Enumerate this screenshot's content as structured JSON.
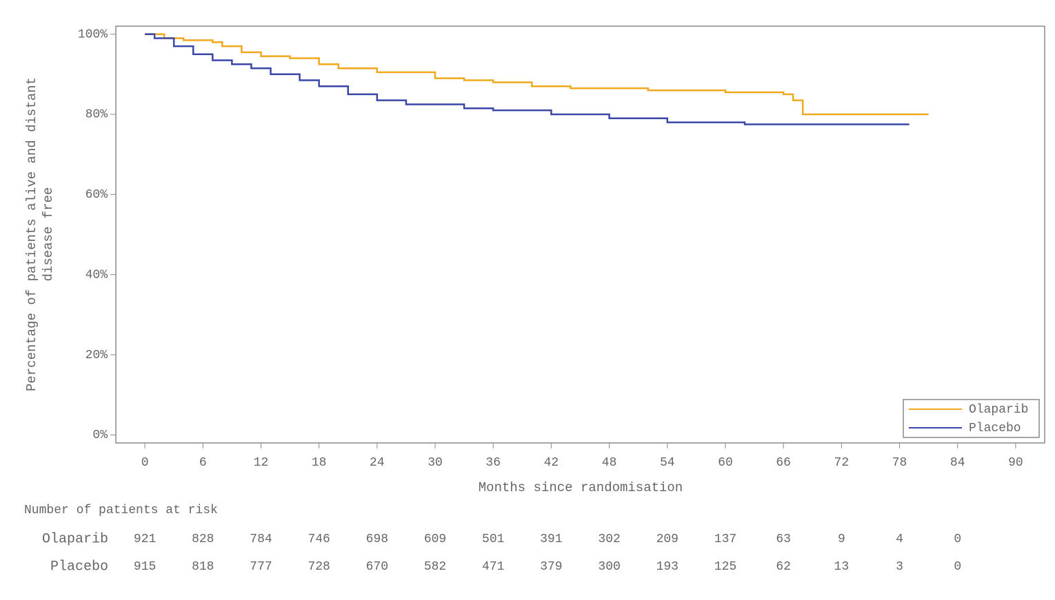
{
  "chart_data": {
    "type": "line",
    "step": "post",
    "ylabel": [
      "Percentage of patients alive and distant",
      "disease free"
    ],
    "xlabel": "Months since randomisation",
    "xlim": [
      -3,
      93
    ],
    "xticks": [
      0,
      6,
      12,
      18,
      24,
      30,
      36,
      42,
      48,
      54,
      60,
      66,
      72,
      78,
      84,
      90
    ],
    "ylim": [
      -2,
      102
    ],
    "yticks": [
      {
        "value": 0,
        "label": "0%"
      },
      {
        "value": 20,
        "label": "20%"
      },
      {
        "value": 40,
        "label": "40%"
      },
      {
        "value": 60,
        "label": "60%"
      },
      {
        "value": 80,
        "label": "80%"
      },
      {
        "value": 100,
        "label": "100%"
      }
    ],
    "legend": "lower right",
    "series": [
      {
        "name": "Olaparib",
        "color": "#f0a81c",
        "x": [
          0,
          2,
          4,
          7,
          8,
          10,
          12,
          15,
          18,
          20,
          24,
          30,
          33,
          36,
          40,
          44,
          52,
          60,
          66,
          67,
          68,
          81
        ],
        "values": [
          100,
          99,
          98.5,
          98,
          97,
          95.5,
          94.5,
          94,
          92.5,
          91.5,
          90.5,
          89,
          88.5,
          88,
          87,
          86.5,
          86,
          85.5,
          85,
          83.5,
          80,
          80
        ]
      },
      {
        "name": "Placebo",
        "color": "#3a46a8",
        "x": [
          0,
          1,
          3,
          5,
          7,
          9,
          11,
          13,
          16,
          18,
          21,
          24,
          27,
          33,
          36,
          42,
          48,
          54,
          62,
          79
        ],
        "values": [
          100,
          99,
          97,
          95,
          93.5,
          92.5,
          91.5,
          90,
          88.5,
          87,
          85,
          83.5,
          82.5,
          81.5,
          81,
          80,
          79,
          78,
          77.5,
          77.5
        ]
      }
    ],
    "risk_table": {
      "title": "Number of patients at risk",
      "rows": [
        {
          "name": "Olaparib",
          "values": [
            921,
            828,
            784,
            746,
            698,
            609,
            501,
            391,
            302,
            209,
            137,
            63,
            9,
            4,
            0
          ]
        },
        {
          "name": "Placebo",
          "values": [
            915,
            818,
            777,
            728,
            670,
            582,
            471,
            379,
            300,
            193,
            125,
            62,
            13,
            3,
            0
          ]
        }
      ]
    }
  }
}
